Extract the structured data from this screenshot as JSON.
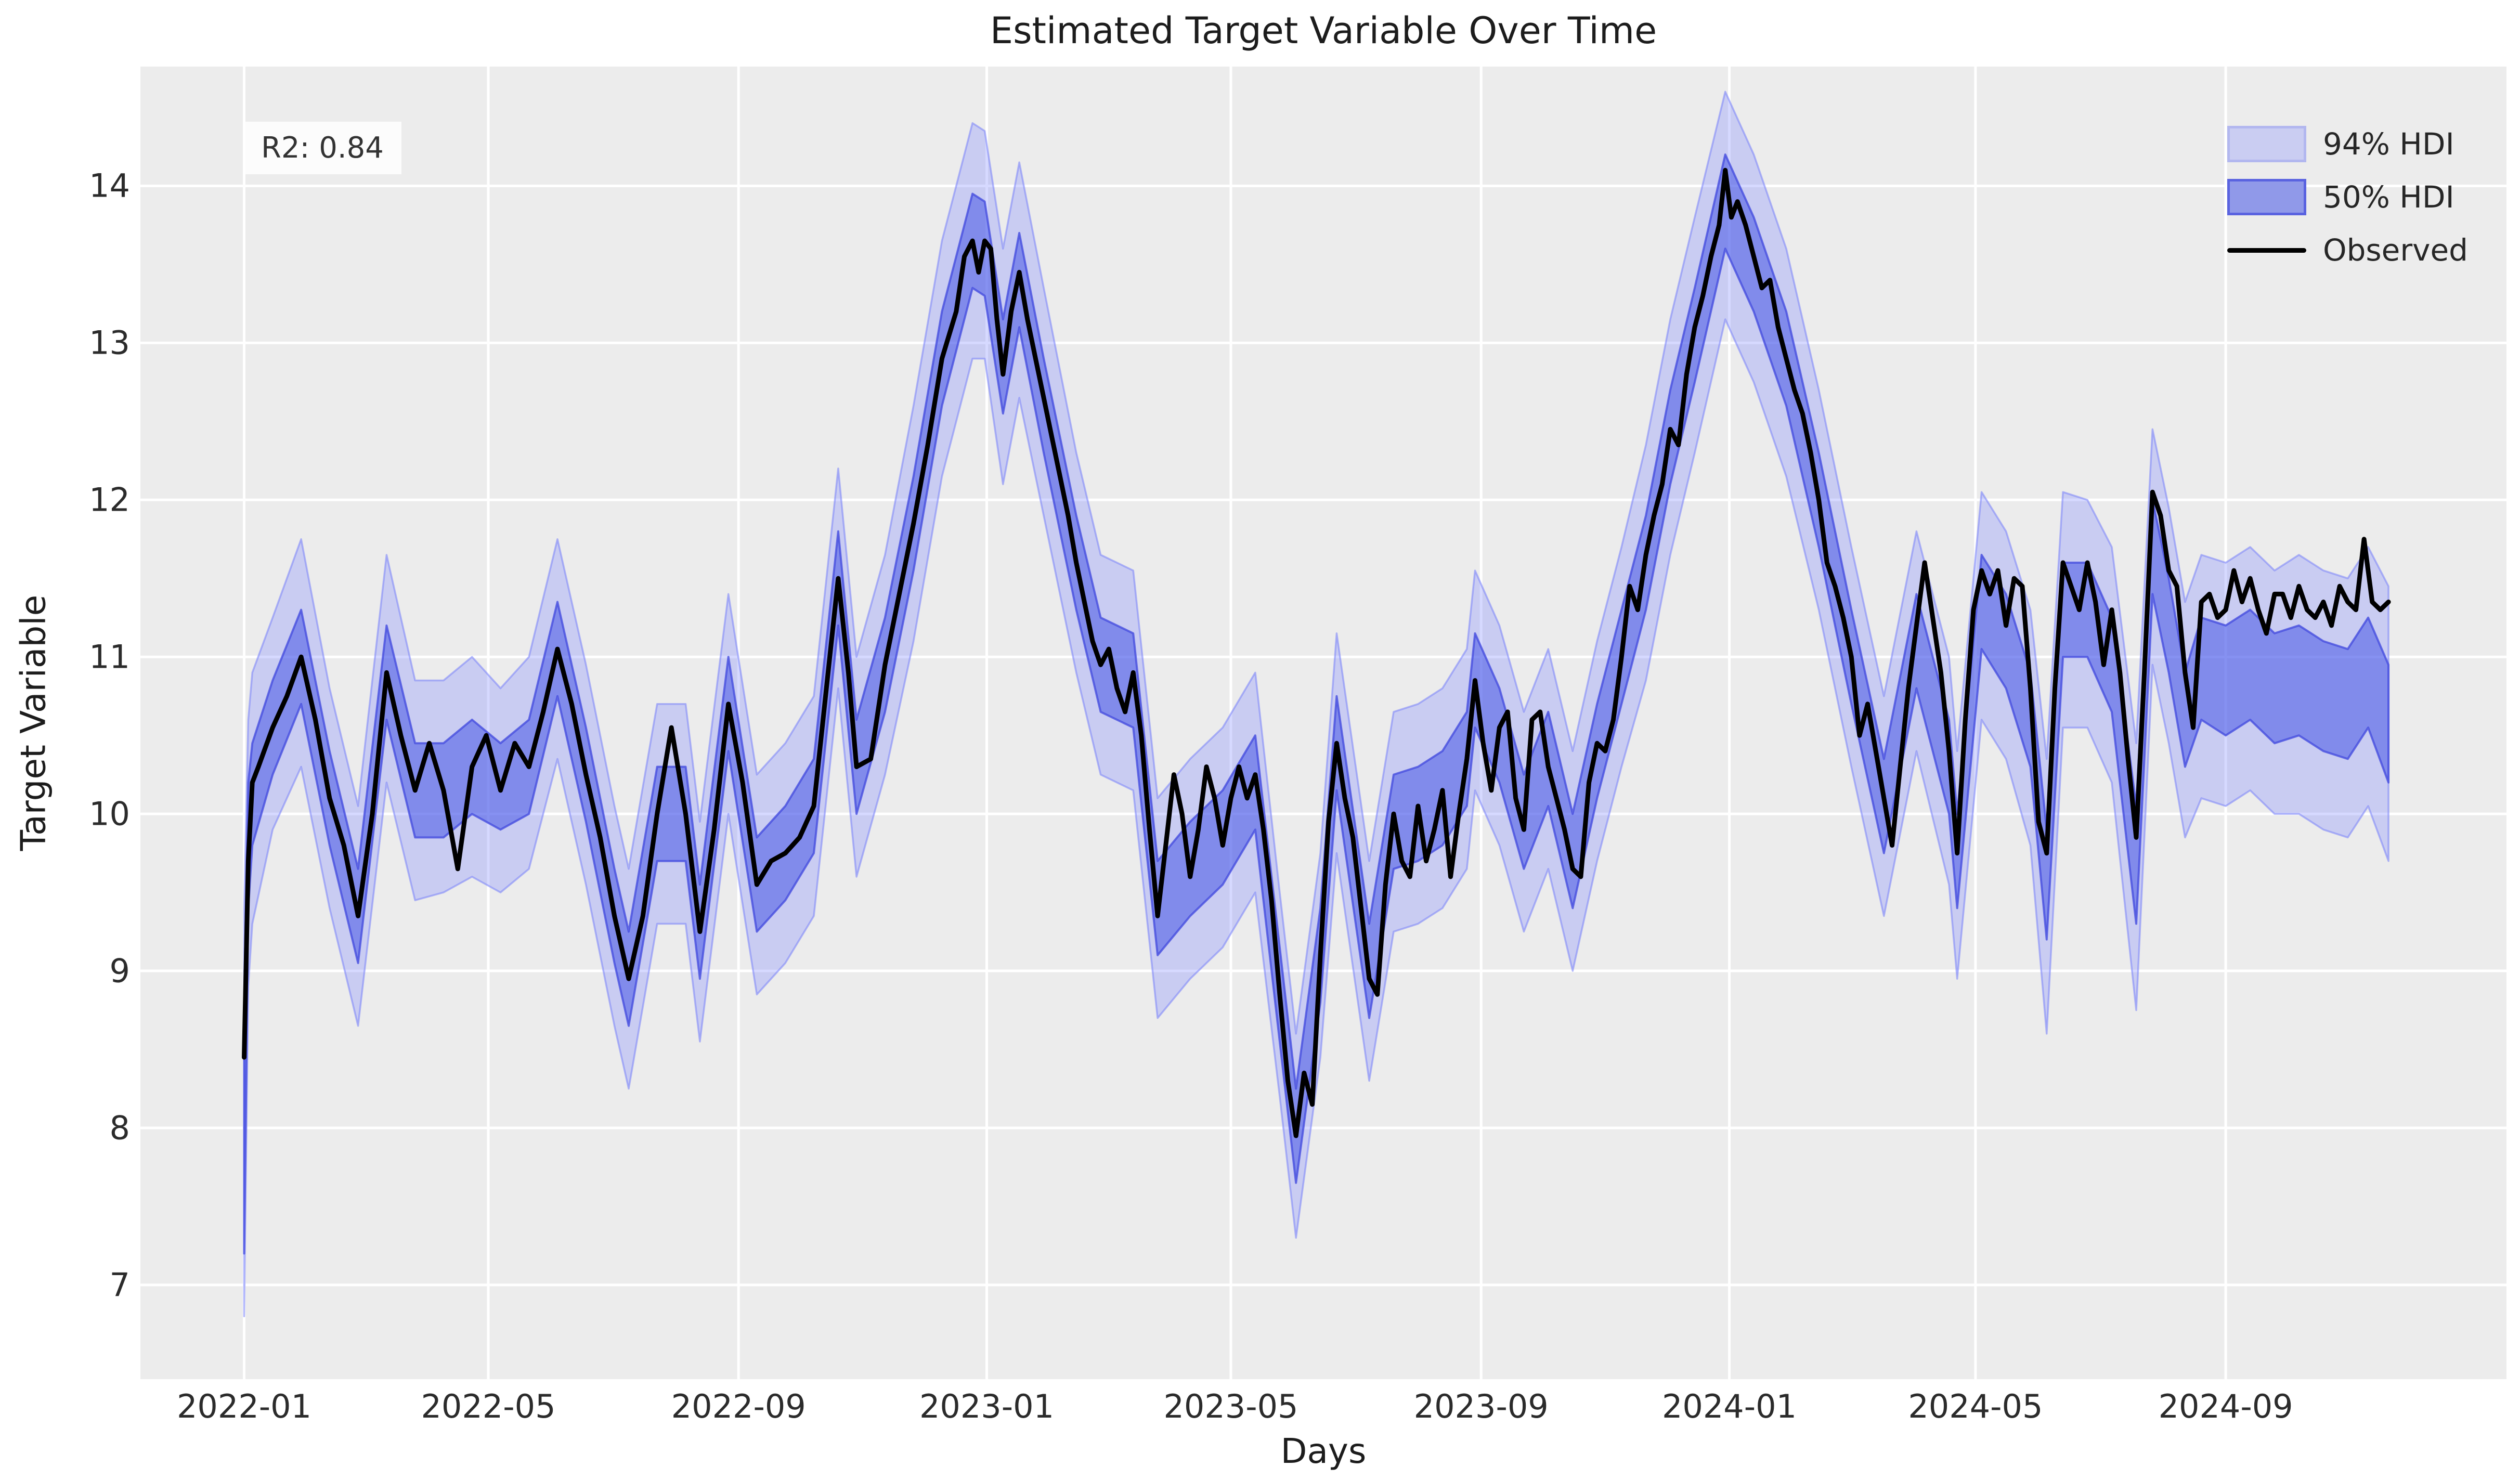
{
  "chart_data": {
    "type": "line",
    "title": "Estimated Target Variable Over Time",
    "xlabel": "Days",
    "ylabel": "Target Variable",
    "annotation": "R2: 0.84",
    "legend": [
      {
        "label": "94% HDI",
        "kind": "band-light"
      },
      {
        "label": "50% HDI",
        "kind": "band-dark"
      },
      {
        "label": "Observed",
        "kind": "line"
      }
    ],
    "legend_position": "upper right",
    "grid": true,
    "x_unit": "days since 2022-01-01",
    "axes": {
      "x_min": -51,
      "x_max": 1112,
      "y_min": 6.4,
      "y_max": 14.76
    },
    "yticks": [
      7,
      8,
      9,
      10,
      11,
      12,
      13,
      14
    ],
    "xticks": {
      "labels": [
        "2022-01",
        "2022-05",
        "2022-09",
        "2023-01",
        "2023-05",
        "2023-09",
        "2024-01",
        "2024-05",
        "2024-09"
      ],
      "positions": [
        0,
        120,
        243,
        365,
        485,
        608,
        730,
        851,
        974
      ]
    },
    "colors": {
      "figure_bg": "#ffffff",
      "axes_bg": "#ececec",
      "grid": "#ffffff",
      "band94_fill": "rgba(118,130,255,0.30)",
      "band94_edge": "rgba(120,130,250,0.55)",
      "band50_fill": "rgba(70,85,230,0.55)",
      "band50_edge": "rgba(70,78,222,0.80)",
      "observed": "#000000",
      "text": "#262626"
    },
    "observed": {
      "days": [
        0,
        2,
        4,
        7,
        14,
        21,
        28,
        35,
        42,
        49,
        56,
        63,
        70,
        77,
        84,
        91,
        98,
        105,
        112,
        119,
        126,
        133,
        140,
        147,
        154,
        161,
        168,
        175,
        182,
        189,
        196,
        203,
        210,
        217,
        224,
        231,
        238,
        245,
        252,
        259,
        266,
        273,
        280,
        287,
        292,
        297,
        301,
        308,
        315,
        322,
        329,
        336,
        343,
        350,
        354,
        358,
        361,
        364,
        367,
        370,
        373,
        377,
        381,
        385,
        389,
        393,
        397,
        401,
        405,
        409,
        413,
        417,
        421,
        425,
        429,
        433,
        437,
        441,
        445,
        449,
        453,
        457,
        461,
        465,
        469,
        473,
        477,
        481,
        485,
        489,
        493,
        497,
        501,
        505,
        509,
        513,
        517,
        521,
        525,
        529,
        533,
        537,
        541,
        545,
        549,
        553,
        557,
        561,
        565,
        569,
        573,
        577,
        581,
        585,
        589,
        593,
        597,
        601,
        605,
        609,
        613,
        617,
        621,
        625,
        629,
        633,
        637,
        641,
        645,
        649,
        653,
        657,
        661,
        665,
        669,
        673,
        677,
        681,
        685,
        689,
        693,
        697,
        701,
        705,
        709,
        713,
        717,
        721,
        725,
        728,
        731,
        734,
        738,
        742,
        746,
        750,
        754,
        758,
        762,
        766,
        770,
        774,
        778,
        782,
        786,
        790,
        794,
        798,
        802,
        806,
        810,
        814,
        818,
        822,
        826,
        830,
        834,
        838,
        842,
        846,
        850,
        854,
        858,
        862,
        866,
        870,
        874,
        878,
        882,
        886,
        890,
        894,
        898,
        902,
        906,
        910,
        914,
        918,
        922,
        926,
        930,
        934,
        938,
        942,
        946,
        950,
        954,
        958,
        962,
        966,
        970,
        974,
        978,
        982,
        986,
        990,
        994,
        998,
        1002,
        1006,
        1010,
        1014,
        1018,
        1022,
        1026,
        1030,
        1034,
        1038,
        1042,
        1046,
        1050,
        1054
      ],
      "values": [
        8.45,
        9.7,
        10.2,
        10.3,
        10.55,
        10.75,
        11.0,
        10.6,
        10.1,
        9.8,
        9.35,
        10.0,
        10.9,
        10.5,
        10.15,
        10.45,
        10.15,
        9.65,
        10.3,
        10.5,
        10.15,
        10.45,
        10.3,
        10.65,
        11.05,
        10.7,
        10.25,
        9.85,
        9.35,
        8.95,
        9.35,
        10.0,
        10.55,
        10.0,
        9.25,
        9.9,
        10.7,
        10.2,
        9.55,
        9.7,
        9.75,
        9.85,
        10.05,
        10.9,
        11.5,
        10.9,
        10.3,
        10.35,
        10.95,
        11.4,
        11.85,
        12.35,
        12.9,
        13.2,
        13.55,
        13.65,
        13.45,
        13.65,
        13.6,
        13.15,
        12.8,
        13.2,
        13.45,
        13.15,
        12.9,
        12.65,
        12.4,
        12.15,
        11.9,
        11.6,
        11.35,
        11.1,
        10.95,
        11.05,
        10.8,
        10.65,
        10.9,
        10.5,
        9.9,
        9.35,
        9.8,
        10.25,
        10.0,
        9.6,
        9.9,
        10.3,
        10.1,
        9.8,
        10.1,
        10.3,
        10.1,
        10.25,
        9.9,
        9.45,
        8.85,
        8.3,
        7.95,
        8.35,
        8.15,
        9.1,
        9.95,
        10.45,
        10.1,
        9.85,
        9.4,
        8.95,
        8.85,
        9.55,
        10.0,
        9.7,
        9.6,
        10.05,
        9.7,
        9.9,
        10.15,
        9.6,
        10.0,
        10.35,
        10.85,
        10.45,
        10.15,
        10.55,
        10.65,
        10.1,
        9.9,
        10.6,
        10.65,
        10.3,
        10.1,
        9.9,
        9.65,
        9.6,
        10.2,
        10.45,
        10.4,
        10.6,
        11.0,
        11.45,
        11.3,
        11.65,
        11.9,
        12.1,
        12.45,
        12.35,
        12.8,
        13.1,
        13.3,
        13.55,
        13.75,
        14.1,
        13.8,
        13.9,
        13.75,
        13.55,
        13.35,
        13.4,
        13.1,
        12.9,
        12.7,
        12.55,
        12.3,
        12.0,
        11.6,
        11.45,
        11.25,
        11.0,
        10.5,
        10.7,
        10.4,
        10.1,
        9.8,
        10.3,
        10.8,
        11.2,
        11.6,
        11.25,
        10.9,
        10.4,
        9.75,
        10.6,
        11.3,
        11.55,
        11.4,
        11.55,
        11.2,
        11.5,
        11.45,
        10.8,
        9.95,
        9.75,
        10.8,
        11.6,
        11.45,
        11.3,
        11.6,
        11.35,
        10.95,
        11.3,
        10.9,
        10.35,
        9.85,
        10.9,
        12.05,
        11.9,
        11.55,
        11.45,
        10.9,
        10.55,
        11.35,
        11.4,
        11.25,
        11.3,
        11.55,
        11.35,
        11.5,
        11.3,
        11.15,
        11.4,
        11.4,
        11.25,
        11.45,
        11.3,
        11.25,
        11.35,
        11.2,
        11.45,
        11.35,
        11.3,
        11.75,
        11.35,
        11.3,
        11.35
      ]
    },
    "hdi": {
      "days": [
        0,
        2,
        4,
        14,
        28,
        42,
        56,
        70,
        84,
        98,
        112,
        126,
        140,
        154,
        168,
        182,
        189,
        203,
        217,
        224,
        238,
        252,
        266,
        280,
        292,
        301,
        315,
        329,
        343,
        358,
        364,
        373,
        381,
        393,
        409,
        421,
        437,
        449,
        465,
        481,
        497,
        509,
        517,
        529,
        537,
        553,
        565,
        577,
        589,
        601,
        605,
        617,
        629,
        641,
        653,
        665,
        677,
        689,
        701,
        713,
        728,
        742,
        758,
        774,
        790,
        806,
        822,
        838,
        842,
        854,
        866,
        878,
        886,
        894,
        906,
        918,
        930,
        938,
        946,
        954,
        962,
        974,
        986,
        998,
        1010,
        1022,
        1034,
        1044,
        1054
      ],
      "hdi94_lower": [
        6.8,
        8.9,
        9.3,
        9.9,
        10.3,
        9.4,
        8.65,
        10.2,
        9.45,
        9.5,
        9.6,
        9.5,
        9.65,
        10.35,
        9.55,
        8.65,
        8.25,
        9.3,
        9.3,
        8.55,
        10.0,
        8.85,
        9.05,
        9.35,
        10.8,
        9.6,
        10.25,
        11.1,
        12.15,
        12.9,
        12.9,
        12.1,
        12.65,
        11.9,
        10.9,
        10.25,
        10.15,
        8.7,
        8.95,
        9.15,
        9.5,
        8.2,
        7.3,
        8.45,
        9.75,
        8.3,
        9.25,
        9.3,
        9.4,
        9.65,
        10.15,
        9.8,
        9.25,
        9.65,
        9.0,
        9.7,
        10.3,
        10.85,
        11.65,
        12.3,
        13.15,
        12.75,
        12.15,
        11.3,
        10.3,
        9.35,
        10.4,
        9.55,
        8.95,
        10.6,
        10.35,
        9.8,
        8.6,
        10.55,
        10.55,
        10.2,
        8.75,
        10.95,
        10.45,
        9.85,
        10.1,
        10.05,
        10.15,
        10.0,
        10.0,
        9.9,
        9.85,
        10.05,
        9.7
      ],
      "hdi94_upper": [
        9.4,
        10.6,
        10.9,
        11.25,
        11.75,
        10.8,
        10.05,
        11.65,
        10.85,
        10.85,
        11.0,
        10.8,
        11.0,
        11.75,
        10.95,
        10.05,
        9.65,
        10.7,
        10.7,
        9.95,
        11.4,
        10.25,
        10.45,
        10.75,
        12.2,
        11.0,
        11.65,
        12.6,
        13.65,
        14.4,
        14.35,
        13.6,
        14.15,
        13.35,
        12.3,
        11.65,
        11.55,
        10.1,
        10.35,
        10.55,
        10.9,
        9.5,
        8.6,
        9.75,
        11.15,
        9.7,
        10.65,
        10.7,
        10.8,
        11.05,
        11.55,
        11.2,
        10.65,
        11.05,
        10.4,
        11.1,
        11.7,
        12.35,
        13.15,
        13.8,
        14.6,
        14.2,
        13.6,
        12.7,
        11.7,
        10.75,
        11.8,
        11.0,
        10.4,
        12.05,
        11.8,
        11.3,
        10.35,
        12.05,
        12.0,
        11.7,
        10.45,
        12.45,
        11.95,
        11.35,
        11.65,
        11.6,
        11.7,
        11.55,
        11.65,
        11.55,
        11.5,
        11.7,
        11.45
      ],
      "hdi50_lower": [
        7.2,
        9.4,
        9.8,
        10.25,
        10.7,
        9.8,
        9.05,
        10.6,
        9.85,
        9.85,
        10.0,
        9.9,
        10.0,
        10.75,
        9.95,
        9.05,
        8.65,
        9.7,
        9.7,
        8.95,
        10.4,
        9.25,
        9.45,
        9.75,
        11.2,
        10.0,
        10.65,
        11.55,
        12.6,
        13.35,
        13.3,
        12.55,
        13.1,
        12.3,
        11.3,
        10.65,
        10.55,
        9.1,
        9.35,
        9.55,
        9.9,
        8.55,
        7.65,
        8.8,
        10.15,
        8.7,
        9.65,
        9.7,
        9.8,
        10.05,
        10.55,
        10.2,
        9.65,
        10.05,
        9.4,
        10.1,
        10.7,
        11.3,
        12.1,
        12.75,
        13.6,
        13.2,
        12.6,
        11.7,
        10.7,
        9.75,
        10.8,
        10.0,
        9.4,
        11.05,
        10.8,
        10.3,
        9.2,
        11.0,
        11.0,
        10.65,
        9.3,
        11.4,
        10.9,
        10.3,
        10.6,
        10.5,
        10.6,
        10.45,
        10.5,
        10.4,
        10.35,
        10.55,
        10.2
      ],
      "hdi50_upper": [
        8.8,
        10.2,
        10.45,
        10.85,
        11.3,
        10.4,
        9.65,
        11.2,
        10.45,
        10.45,
        10.6,
        10.45,
        10.6,
        11.35,
        10.55,
        9.65,
        9.25,
        10.3,
        10.3,
        9.55,
        11.0,
        9.85,
        10.05,
        10.35,
        11.8,
        10.6,
        11.25,
        12.15,
        13.2,
        13.95,
        13.9,
        13.15,
        13.7,
        12.9,
        11.9,
        11.25,
        11.15,
        9.7,
        9.95,
        10.15,
        10.5,
        9.15,
        8.25,
        9.4,
        10.75,
        9.3,
        10.25,
        10.3,
        10.4,
        10.65,
        11.15,
        10.8,
        10.25,
        10.65,
        10.0,
        10.7,
        11.3,
        11.9,
        12.7,
        13.35,
        14.2,
        13.8,
        13.2,
        12.3,
        11.3,
        10.35,
        11.4,
        10.6,
        10.0,
        11.65,
        11.4,
        10.9,
        9.9,
        11.6,
        11.6,
        11.25,
        10.05,
        12.0,
        11.5,
        10.9,
        11.25,
        11.2,
        11.3,
        11.15,
        11.2,
        11.1,
        11.05,
        11.25,
        10.95
      ]
    }
  }
}
